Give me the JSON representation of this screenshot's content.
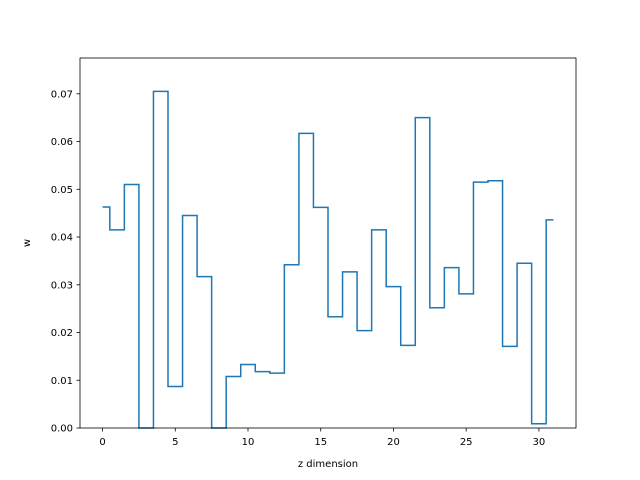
{
  "chart_data": {
    "type": "line",
    "style": "step",
    "title": "",
    "xlabel": "z dimension",
    "ylabel": "w",
    "xlim": [
      -1.55,
      32.55
    ],
    "ylim": [
      0.0,
      0.0775
    ],
    "xticks": [
      0,
      5,
      10,
      15,
      20,
      25,
      30
    ],
    "yticks": [
      0.0,
      0.01,
      0.02,
      0.03,
      0.04,
      0.05,
      0.06,
      0.07
    ],
    "ytick_labels": [
      "0.00",
      "0.01",
      "0.02",
      "0.03",
      "0.04",
      "0.05",
      "0.06",
      "0.07"
    ],
    "grid": false,
    "series": [
      {
        "color": "#1f77b4",
        "x": [
          0,
          1,
          2,
          3,
          4,
          5,
          6,
          7,
          8,
          9,
          10,
          11,
          12,
          13,
          14,
          15,
          16,
          17,
          18,
          19,
          20,
          21,
          22,
          23,
          24,
          25,
          26,
          27,
          28,
          29,
          30,
          31
        ],
        "values": [
          0.0463,
          0.0415,
          0.051,
          0.0,
          0.0705,
          0.0087,
          0.0445,
          0.0317,
          0.0,
          0.0108,
          0.0133,
          0.0118,
          0.0115,
          0.0342,
          0.0617,
          0.0462,
          0.0233,
          0.0327,
          0.0204,
          0.0415,
          0.0296,
          0.0173,
          0.065,
          0.0252,
          0.0336,
          0.0281,
          0.0515,
          0.0518,
          0.0171,
          0.0345,
          0.0009,
          0.0436
        ]
      }
    ]
  }
}
